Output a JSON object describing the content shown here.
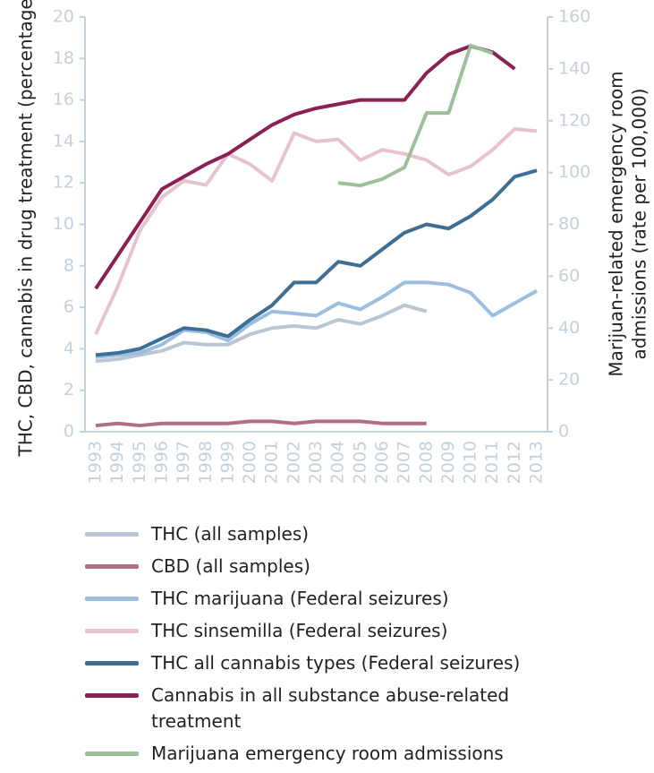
{
  "chart_data": {
    "type": "line",
    "y_label": "THC, CBD, cannabis in drug treatment (percentage)",
    "y2_label": [
      "Marijuan-related emergency room",
      "admissions (rate per 100,000)"
    ],
    "categories": [
      "1993",
      "1994",
      "1995",
      "1996",
      "1997",
      "1998",
      "1999",
      "2000",
      "2001",
      "2002",
      "2003",
      "2004",
      "2005",
      "2006",
      "2007",
      "2008",
      "2009",
      "2010",
      "2011",
      "2012",
      "2013"
    ],
    "ylim": [
      0,
      20
    ],
    "yticks": [
      0,
      2,
      4,
      6,
      8,
      10,
      12,
      14,
      16,
      18,
      20
    ],
    "y2lim": [
      0,
      160
    ],
    "y2ticks": [
      0,
      20,
      40,
      60,
      80,
      100,
      120,
      140,
      160
    ],
    "grid": false,
    "series": [
      {
        "name": "THC (all samples)",
        "color": "#b8c7d3",
        "values": [
          3.4,
          3.5,
          3.7,
          3.9,
          4.3,
          4.2,
          4.2,
          4.7,
          5.0,
          5.1,
          5.0,
          5.4,
          5.2,
          5.6,
          6.1,
          5.8,
          null,
          null,
          null,
          null,
          null
        ]
      },
      {
        "name": "CBD (all samples)",
        "color": "#b06e88",
        "values": [
          0.3,
          0.4,
          0.3,
          0.4,
          0.4,
          0.4,
          0.4,
          0.5,
          0.5,
          0.4,
          0.5,
          0.5,
          0.5,
          0.4,
          0.4,
          0.4,
          null,
          null,
          null,
          null,
          null
        ]
      },
      {
        "name": "THC marijuana (Federal seizures)",
        "color": "#9dbfdf",
        "values": [
          3.6,
          3.7,
          3.8,
          4.2,
          4.9,
          4.8,
          4.4,
          5.2,
          5.8,
          5.7,
          5.6,
          6.2,
          5.9,
          6.5,
          7.2,
          7.2,
          7.1,
          6.7,
          5.6,
          6.2,
          6.8
        ]
      },
      {
        "name": "THC sinsemilla (Federal seizures)",
        "color": "#e6c3cf",
        "values": [
          4.7,
          7.0,
          9.7,
          11.3,
          12.1,
          11.9,
          13.4,
          12.9,
          12.1,
          14.4,
          14.0,
          14.1,
          13.1,
          13.6,
          13.4,
          13.1,
          12.4,
          12.8,
          13.6,
          14.6,
          14.5
        ]
      },
      {
        "name": "THC all cannabis types (Federal seizures)",
        "color": "#3d6e95",
        "values": [
          3.7,
          3.8,
          4.0,
          4.5,
          5.0,
          4.9,
          4.6,
          5.4,
          6.1,
          7.2,
          7.2,
          8.2,
          8.0,
          8.8,
          9.6,
          10.0,
          9.8,
          10.4,
          11.2,
          12.3,
          12.6
        ]
      },
      {
        "name": "Cannabis in all substance abuse-related treatment",
        "color": "#8b2152",
        "values": [
          6.9,
          8.5,
          10.1,
          11.7,
          12.3,
          12.9,
          13.4,
          14.1,
          14.8,
          15.3,
          15.6,
          15.8,
          16.0,
          16.0,
          16.0,
          17.3,
          18.2,
          18.6,
          18.3,
          17.5,
          null
        ]
      },
      {
        "name": "Marijuana emergency room admissions",
        "color": "#9dc09b",
        "axis": "y2",
        "values": [
          null,
          null,
          null,
          null,
          null,
          null,
          null,
          null,
          null,
          null,
          null,
          96,
          95,
          97.5,
          102,
          123,
          123,
          149,
          146,
          null,
          null
        ]
      }
    ]
  }
}
